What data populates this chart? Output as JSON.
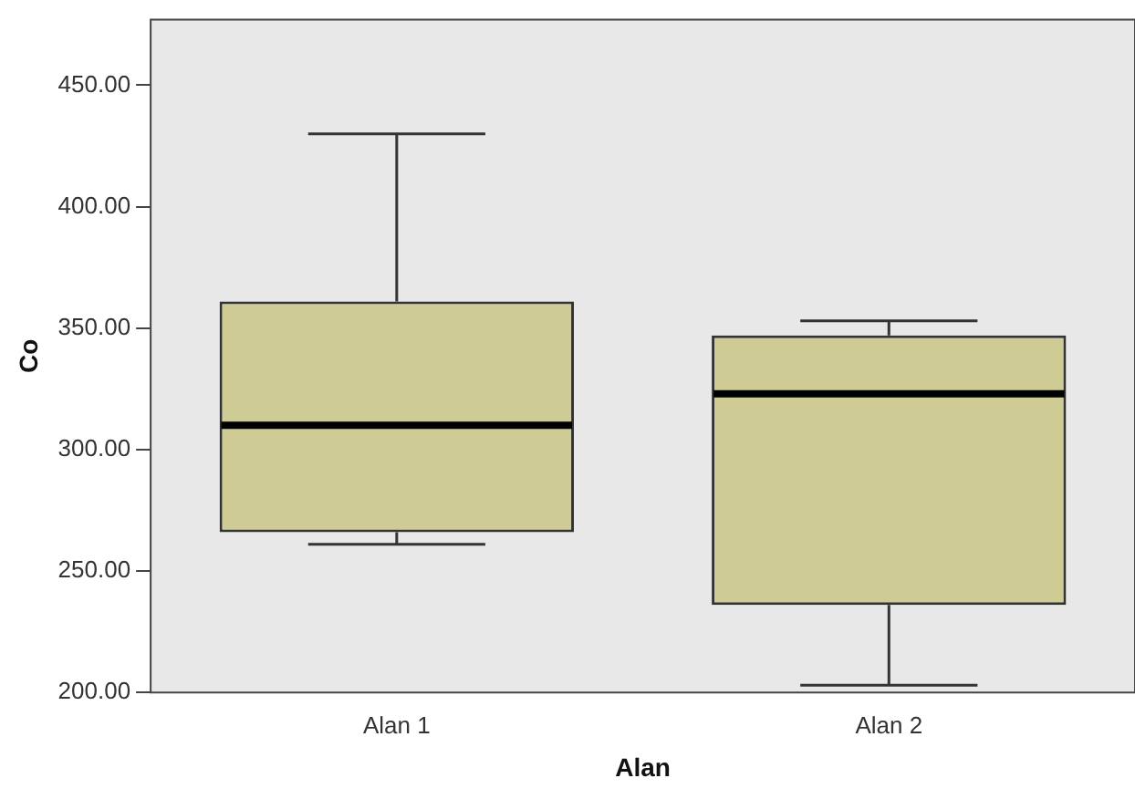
{
  "chart_data": {
    "type": "box",
    "xlabel": "Alan",
    "ylabel": "Co",
    "categories": [
      "Alan 1",
      "Alan 2"
    ],
    "color": "#cecc94",
    "boxes": [
      {
        "low": 261,
        "q1": 266,
        "median": 310,
        "q3": 361,
        "high": 430
      },
      {
        "low": 203,
        "q1": 236,
        "median": 323,
        "q3": 347,
        "high": 353
      }
    ],
    "ylim": [
      200,
      477
    ],
    "yticks": [
      {
        "value": 200,
        "label": "200.00"
      },
      {
        "value": 250,
        "label": "250.00"
      },
      {
        "value": 300,
        "label": "300.00"
      },
      {
        "value": 350,
        "label": "350.00"
      },
      {
        "value": 400,
        "label": "400.00"
      },
      {
        "value": 450,
        "label": "450.00"
      }
    ],
    "grid": false,
    "legend": false
  }
}
